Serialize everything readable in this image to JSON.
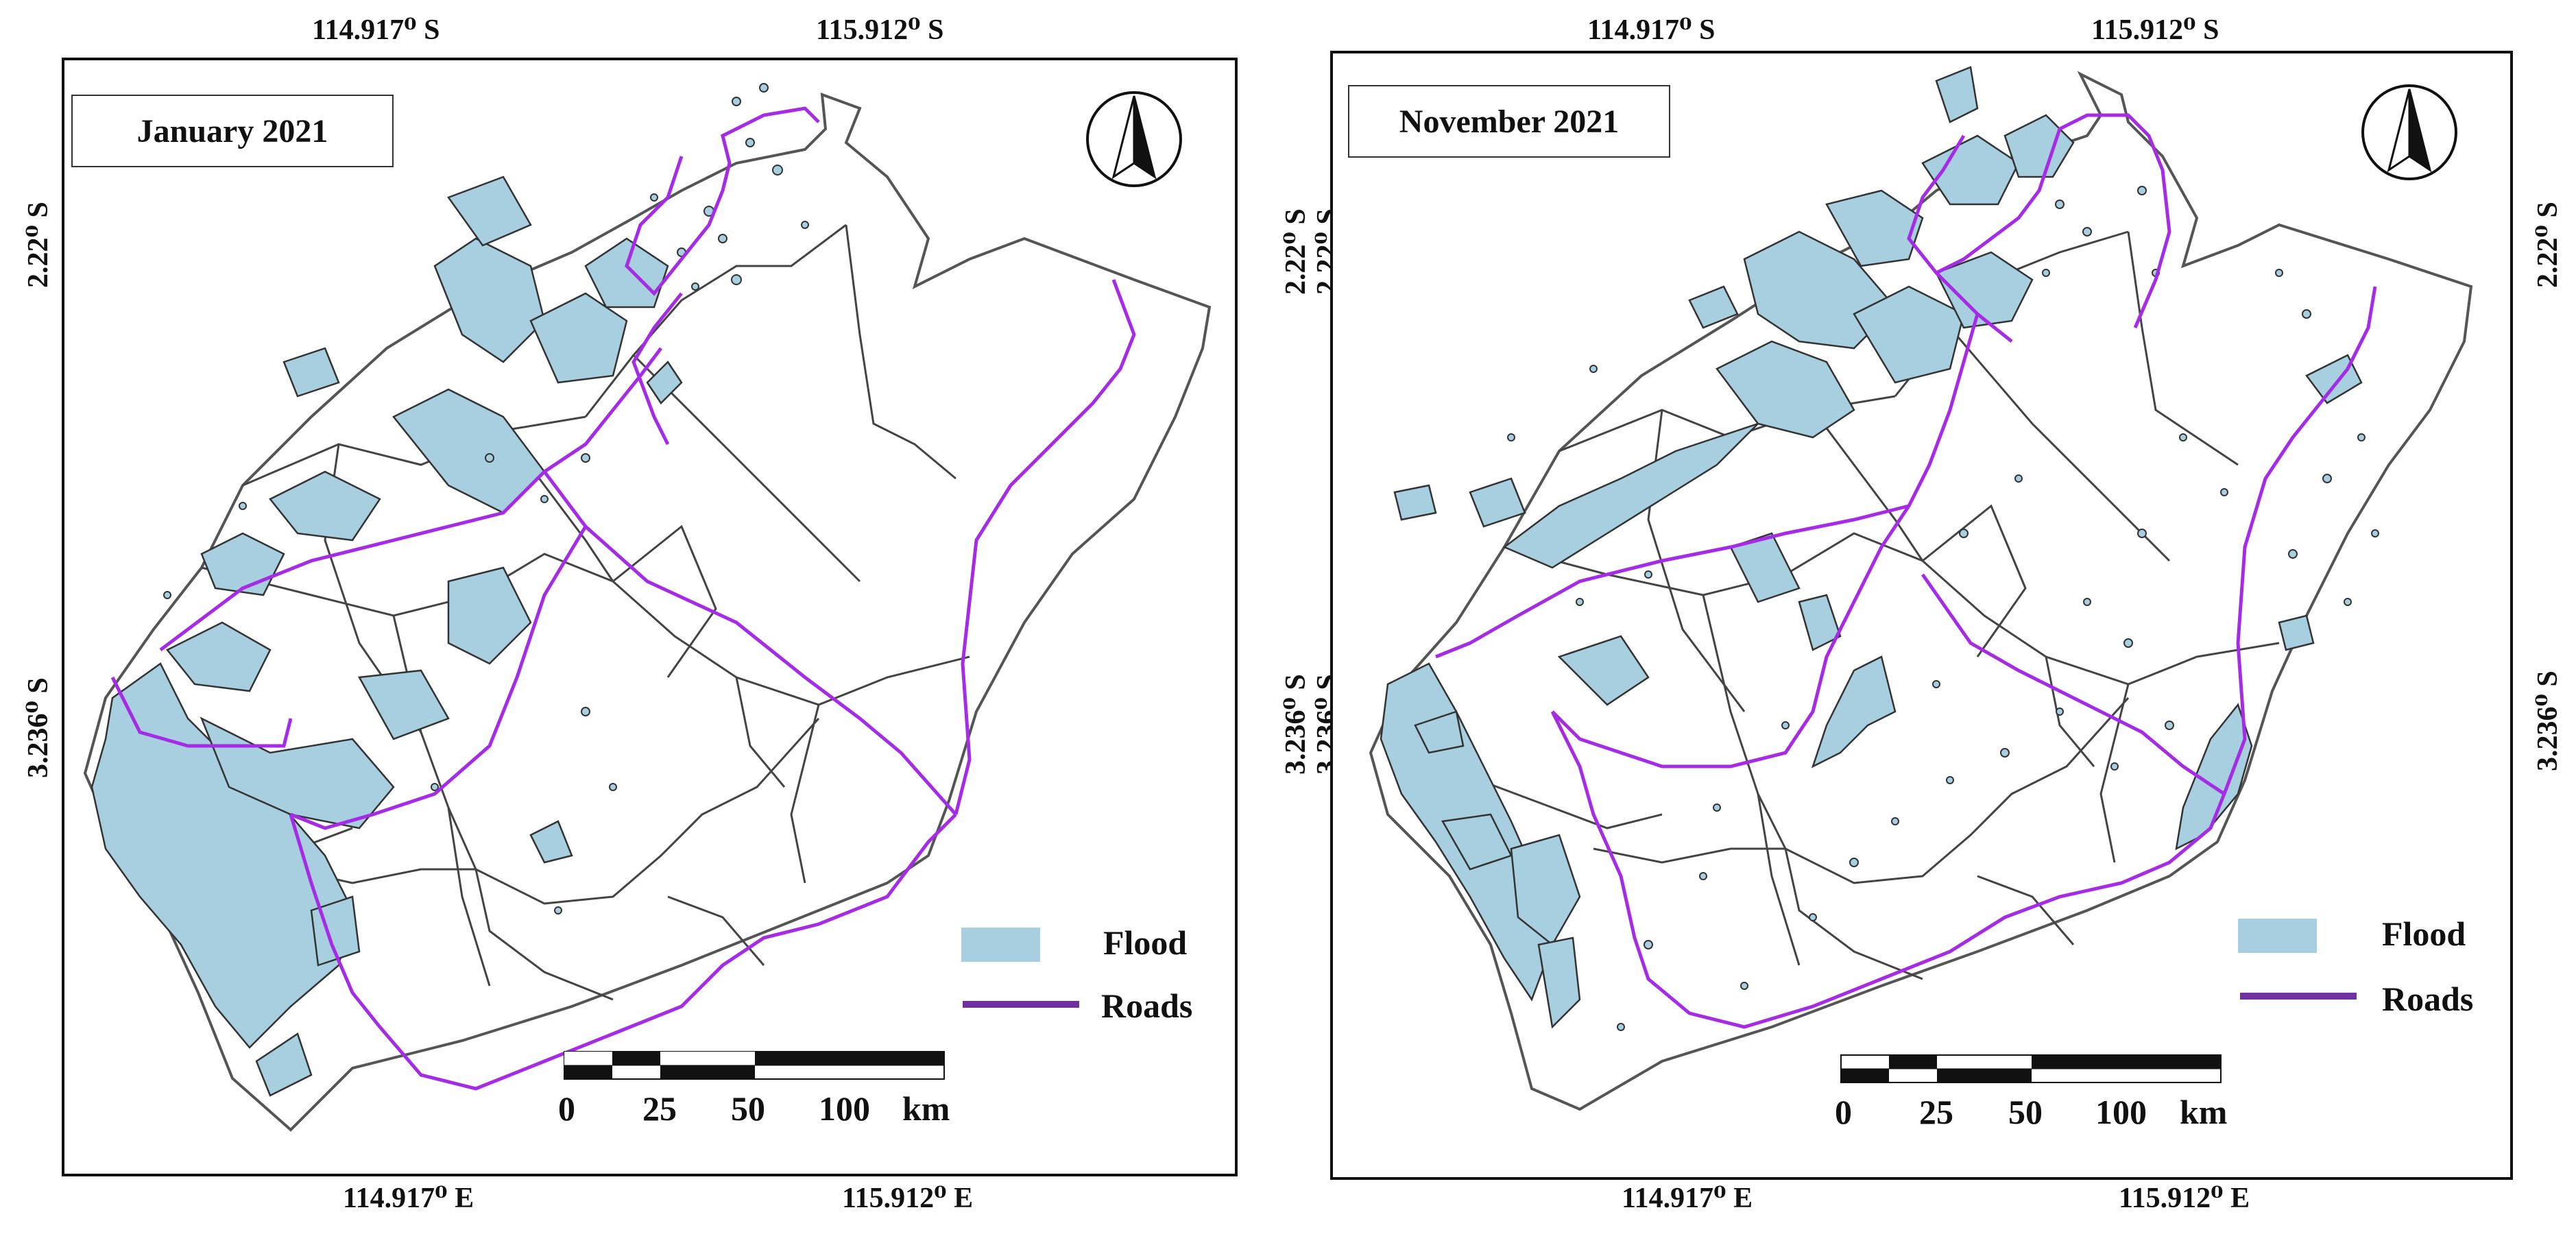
{
  "colors": {
    "flood": "#a8cfe0",
    "roads": "#a52be6",
    "legend_roads": "#7030a0",
    "boundary": "#444444"
  },
  "panels": [
    {
      "title": "January 2021",
      "top_ticks": [
        "114.917⁰ S",
        "115.912⁰ S"
      ],
      "bottom_ticks": [
        "114.917⁰ E",
        "115.912⁰ E"
      ],
      "left_ticks": [
        "2.22⁰ S",
        "3.236⁰ S"
      ],
      "legend": {
        "flood": "Flood",
        "roads": "Roads"
      },
      "scale": {
        "labels": [
          "0",
          "25",
          "50",
          "100",
          "km"
        ]
      },
      "north_arrow": "north-arrow-icon"
    },
    {
      "title": "November 2021",
      "top_ticks": [
        "114.917⁰ S",
        "115.912⁰ S"
      ],
      "bottom_ticks": [
        "114.917⁰ E",
        "115.912⁰ E"
      ],
      "left_ticks": [
        "2.22⁰ S",
        "2.22⁰ S",
        "3.236⁰ S",
        "3.236⁰ S"
      ],
      "right_ticks": [
        "2.22⁰ S",
        "3.236⁰ S"
      ],
      "legend": {
        "flood": "Flood",
        "roads": "Roads"
      },
      "scale": {
        "labels": [
          "0",
          "25",
          "50",
          "100",
          "km"
        ]
      },
      "north_arrow": "north-arrow-icon"
    }
  ]
}
